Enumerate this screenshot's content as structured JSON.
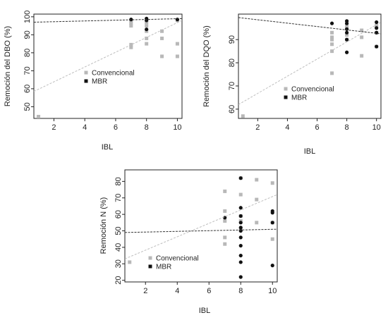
{
  "colors": {
    "convencional": "#b8b8b8",
    "mbr": "#111111",
    "conv_trend": "#bdbdbd",
    "mbr_trend": "#333333",
    "frame": "#222222"
  },
  "chart_data": [
    {
      "id": "dbo",
      "type": "scatter",
      "xlabel": "IBL",
      "ylabel": "Remoción del DBO (%)",
      "xlim": [
        0.7,
        10.3
      ],
      "ylim": [
        43.5,
        101.5
      ],
      "xticks": [
        2,
        4,
        6,
        8,
        10
      ],
      "yticks": [
        50,
        60,
        70,
        80,
        90,
        100
      ],
      "legend": {
        "position": "center-right",
        "entries": [
          "Convencional",
          "MBR"
        ]
      },
      "series": [
        {
          "name": "Convencional",
          "marker": "square",
          "points": [
            [
              1,
              44.5
            ],
            [
              7,
              83
            ],
            [
              7,
              84.5
            ],
            [
              7,
              95
            ],
            [
              7,
              96.5
            ],
            [
              7,
              98
            ],
            [
              8,
              85
            ],
            [
              8,
              88
            ],
            [
              8,
              92
            ],
            [
              8,
              95
            ],
            [
              8,
              97
            ],
            [
              8,
              98
            ],
            [
              9,
              78
            ],
            [
              9,
              88
            ],
            [
              9,
              92
            ],
            [
              10,
              78
            ],
            [
              10,
              85
            ],
            [
              10,
              98
            ]
          ]
        },
        {
          "name": "MBR",
          "marker": "circle",
          "points": [
            [
              7,
              98.5
            ],
            [
              8,
              93
            ],
            [
              8,
              98
            ],
            [
              8,
              99
            ],
            [
              10,
              98.5
            ]
          ]
        }
      ],
      "trendlines": [
        {
          "series": "Convencional",
          "style": "dashed",
          "from": [
            0.7,
            58.5
          ],
          "to": [
            10.3,
            98
          ]
        },
        {
          "series": "MBR",
          "style": "dashed",
          "from": [
            0.7,
            97
          ],
          "to": [
            10.3,
            99
          ]
        }
      ]
    },
    {
      "id": "dqo",
      "type": "scatter",
      "xlabel": "IBL",
      "ylabel": "Remoción del DQO (%)",
      "xlim": [
        0.7,
        10.3
      ],
      "ylim": [
        56,
        101
      ],
      "xticks": [
        2,
        4,
        6,
        8,
        10
      ],
      "yticks": [
        60,
        70,
        80,
        90
      ],
      "legend": {
        "position": "bottom-right",
        "entries": [
          "Convencional",
          "MBR"
        ]
      },
      "series": [
        {
          "name": "Convencional",
          "marker": "square",
          "points": [
            [
              1,
              57
            ],
            [
              7,
              75.5
            ],
            [
              7,
              85
            ],
            [
              7,
              88
            ],
            [
              7,
              90
            ],
            [
              7,
              91
            ],
            [
              7,
              93
            ],
            [
              8,
              90
            ],
            [
              8,
              92
            ],
            [
              8,
              95
            ],
            [
              8,
              96
            ],
            [
              9,
              83
            ],
            [
              9,
              91
            ],
            [
              9,
              94
            ],
            [
              10,
              87
            ],
            [
              10,
              93
            ],
            [
              10,
              96
            ]
          ]
        },
        {
          "name": "MBR",
          "marker": "circle",
          "points": [
            [
              7,
              97
            ],
            [
              8,
              84.5
            ],
            [
              8,
              90
            ],
            [
              8,
              93
            ],
            [
              8,
              94.5
            ],
            [
              8,
              97
            ],
            [
              8,
              98
            ],
            [
              10,
              87
            ],
            [
              10,
              93
            ],
            [
              10,
              95
            ],
            [
              10,
              97.5
            ]
          ]
        }
      ],
      "trendlines": [
        {
          "series": "Convencional",
          "style": "dashed",
          "from": [
            0.7,
            62
          ],
          "to": [
            10.3,
            97.5
          ]
        },
        {
          "series": "MBR",
          "style": "dashed",
          "from": [
            0.7,
            99.5
          ],
          "to": [
            10.3,
            92.5
          ]
        }
      ]
    },
    {
      "id": "n",
      "type": "scatter",
      "xlabel": "IBL",
      "ylabel": "Remoción N (%)",
      "xlim": [
        0.7,
        10.3
      ],
      "ylim": [
        19,
        87
      ],
      "xticks": [
        2,
        4,
        6,
        8,
        10
      ],
      "yticks": [
        20,
        30,
        40,
        50,
        60,
        70,
        80
      ],
      "legend": {
        "position": "bottom-left",
        "entries": [
          "Convencional",
          "MBR"
        ]
      },
      "series": [
        {
          "name": "Convencional",
          "marker": "square",
          "points": [
            [
              1,
              31
            ],
            [
              7,
              42
            ],
            [
              7,
              46
            ],
            [
              7,
              56
            ],
            [
              7,
              62
            ],
            [
              7,
              74
            ],
            [
              8,
              51
            ],
            [
              8,
              56
            ],
            [
              8,
              59
            ],
            [
              8,
              72
            ],
            [
              8,
              82
            ],
            [
              9,
              55
            ],
            [
              9,
              69
            ],
            [
              9,
              81
            ],
            [
              10,
              45
            ],
            [
              10,
              55
            ],
            [
              10,
              79
            ]
          ]
        },
        {
          "name": "MBR",
          "marker": "circle",
          "points": [
            [
              7,
              58
            ],
            [
              8,
              22
            ],
            [
              8,
              31
            ],
            [
              8,
              35
            ],
            [
              8,
              41
            ],
            [
              8,
              46
            ],
            [
              8,
              50
            ],
            [
              8,
              52
            ],
            [
              8,
              55
            ],
            [
              8,
              59
            ],
            [
              8,
              64
            ],
            [
              8,
              82
            ],
            [
              10,
              29
            ],
            [
              10,
              55
            ],
            [
              10,
              61
            ],
            [
              10,
              62
            ]
          ]
        }
      ],
      "trendlines": [
        {
          "series": "Convencional",
          "style": "dashed",
          "from": [
            0.7,
            33
          ],
          "to": [
            10.3,
            72
          ]
        },
        {
          "series": "MBR",
          "style": "dashed",
          "from": [
            0.7,
            49
          ],
          "to": [
            10.3,
            51
          ]
        }
      ]
    }
  ]
}
